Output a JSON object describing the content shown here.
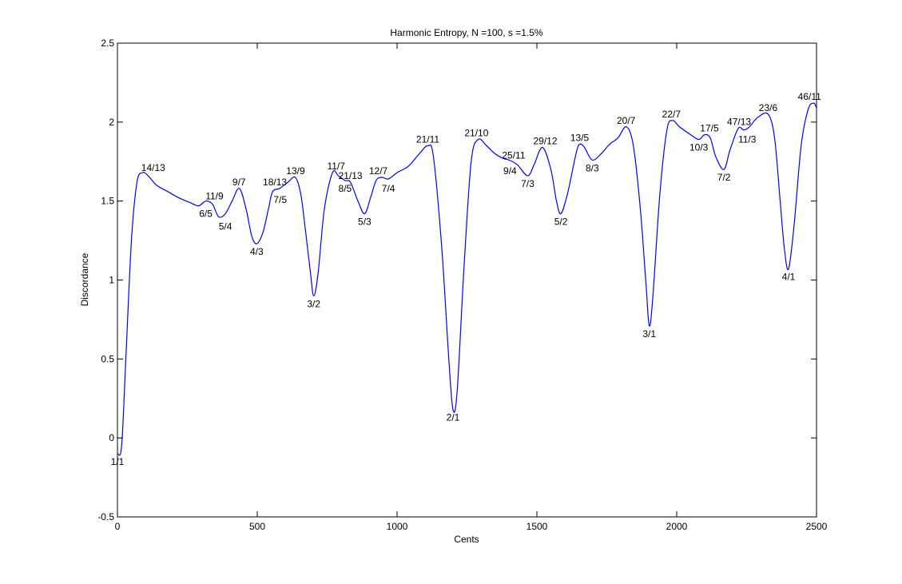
{
  "chart_data": {
    "type": "line",
    "title": "Harmonic Entropy, N =100, s =1.5%",
    "xlabel": "Cents",
    "ylabel": "Discordance",
    "xlim": [
      0,
      2500
    ],
    "ylim": [
      -0.5,
      2.5
    ],
    "x_ticks": [
      0,
      500,
      1000,
      1500,
      2000,
      2500
    ],
    "x_tick_labels": [
      "0",
      "500",
      "1000",
      "1500",
      "2000",
      "2500"
    ],
    "y_ticks": [
      -0.5,
      0,
      0.5,
      1,
      1.5,
      2,
      2.5
    ],
    "y_tick_labels": [
      "-0.5",
      "0",
      "0.5",
      "1",
      "1.5",
      "2",
      "2.5"
    ],
    "grid": false,
    "line_color": "#0000ff",
    "series": [
      {
        "x": [
          0,
          15,
          30,
          50,
          70,
          90,
          110,
          140,
          180,
          220,
          260,
          290,
          316,
          340,
          362,
          386,
          410,
          436,
          460,
          480,
          498,
          520,
          540,
          555,
          580,
          610,
          636,
          655,
          670,
          690,
          702,
          718,
          740,
          769,
          790,
          814,
          833,
          860,
          884,
          905,
          925,
          945,
          969,
          1000,
          1040,
          1080,
          1110,
          1130,
          1160,
          1185,
          1200,
          1215,
          1240,
          1265,
          1290,
          1320,
          1350,
          1380,
          1400,
          1430,
          1467,
          1490,
          1520,
          1550,
          1570,
          1586,
          1610,
          1640,
          1653,
          1670,
          1698,
          1730,
          1760,
          1790,
          1820,
          1845,
          1870,
          1890,
          1902,
          1915,
          1940,
          1965,
          1985,
          2010,
          2050,
          2079,
          2100,
          2120,
          2140,
          2169,
          2190,
          2220,
          2240,
          2260,
          2290,
          2327,
          2350,
          2370,
          2385,
          2400,
          2420,
          2445,
          2470,
          2490,
          2500
        ],
        "y": [
          -0.1,
          -0.05,
          0.5,
          1.25,
          1.62,
          1.68,
          1.66,
          1.6,
          1.56,
          1.52,
          1.49,
          1.47,
          1.5,
          1.48,
          1.4,
          1.42,
          1.5,
          1.58,
          1.45,
          1.28,
          1.23,
          1.3,
          1.45,
          1.56,
          1.58,
          1.62,
          1.65,
          1.55,
          1.35,
          1.05,
          0.9,
          1.05,
          1.45,
          1.68,
          1.66,
          1.63,
          1.62,
          1.5,
          1.42,
          1.52,
          1.63,
          1.65,
          1.64,
          1.68,
          1.72,
          1.8,
          1.85,
          1.78,
          1.2,
          0.5,
          0.18,
          0.3,
          1.1,
          1.75,
          1.89,
          1.85,
          1.8,
          1.77,
          1.76,
          1.73,
          1.66,
          1.73,
          1.84,
          1.7,
          1.5,
          1.42,
          1.55,
          1.8,
          1.86,
          1.84,
          1.76,
          1.8,
          1.86,
          1.9,
          1.97,
          1.85,
          1.45,
          0.98,
          0.71,
          0.9,
          1.55,
          1.95,
          2.01,
          1.97,
          1.92,
          1.89,
          1.92,
          1.9,
          1.78,
          1.7,
          1.82,
          1.96,
          1.95,
          1.97,
          2.03,
          2.05,
          1.9,
          1.5,
          1.2,
          1.07,
          1.35,
          1.85,
          2.08,
          2.12,
          2.09
        ]
      }
    ],
    "annotations": [
      {
        "text": "1/1",
        "x": 0,
        "y": -0.1,
        "pos": "below"
      },
      {
        "text": "14/13",
        "x": 128,
        "y": 1.67,
        "pos": "above"
      },
      {
        "text": "6/5",
        "x": 316,
        "y": 1.47,
        "pos": "below"
      },
      {
        "text": "11/9",
        "x": 347,
        "y": 1.49,
        "pos": "above"
      },
      {
        "text": "5/4",
        "x": 386,
        "y": 1.39,
        "pos": "below"
      },
      {
        "text": "9/7",
        "x": 435,
        "y": 1.58,
        "pos": "above"
      },
      {
        "text": "4/3",
        "x": 498,
        "y": 1.23,
        "pos": "below"
      },
      {
        "text": "18/13",
        "x": 563,
        "y": 1.58,
        "pos": "above"
      },
      {
        "text": "7/5",
        "x": 582,
        "y": 1.56,
        "pos": "below"
      },
      {
        "text": "13/9",
        "x": 637,
        "y": 1.65,
        "pos": "above"
      },
      {
        "text": "3/2",
        "x": 702,
        "y": 0.9,
        "pos": "below"
      },
      {
        "text": "11/7",
        "x": 782,
        "y": 1.68,
        "pos": "above"
      },
      {
        "text": "21/13",
        "x": 833,
        "y": 1.62,
        "pos": "above"
      },
      {
        "text": "8/5",
        "x": 814,
        "y": 1.63,
        "pos": "below"
      },
      {
        "text": "5/3",
        "x": 884,
        "y": 1.42,
        "pos": "below"
      },
      {
        "text": "12/7",
        "x": 933,
        "y": 1.65,
        "pos": "above"
      },
      {
        "text": "7/4",
        "x": 969,
        "y": 1.63,
        "pos": "below"
      },
      {
        "text": "21/11",
        "x": 1110,
        "y": 1.85,
        "pos": "above"
      },
      {
        "text": "2/1",
        "x": 1200,
        "y": 0.18,
        "pos": "below"
      },
      {
        "text": "21/10",
        "x": 1284,
        "y": 1.89,
        "pos": "above"
      },
      {
        "text": "25/11",
        "x": 1417,
        "y": 1.75,
        "pos": "above"
      },
      {
        "text": "9/4",
        "x": 1404,
        "y": 1.74,
        "pos": "below"
      },
      {
        "text": "7/3",
        "x": 1467,
        "y": 1.66,
        "pos": "below"
      },
      {
        "text": "29/12",
        "x": 1530,
        "y": 1.84,
        "pos": "above"
      },
      {
        "text": "5/2",
        "x": 1586,
        "y": 1.42,
        "pos": "below"
      },
      {
        "text": "13/5",
        "x": 1653,
        "y": 1.86,
        "pos": "above"
      },
      {
        "text": "8/3",
        "x": 1698,
        "y": 1.76,
        "pos": "below"
      },
      {
        "text": "20/7",
        "x": 1819,
        "y": 1.97,
        "pos": "above"
      },
      {
        "text": "3/1",
        "x": 1902,
        "y": 0.71,
        "pos": "below"
      },
      {
        "text": "22/7",
        "x": 1981,
        "y": 2.01,
        "pos": "above"
      },
      {
        "text": "17/5",
        "x": 2117,
        "y": 1.92,
        "pos": "above"
      },
      {
        "text": "10/3",
        "x": 2079,
        "y": 1.89,
        "pos": "below"
      },
      {
        "text": "7/2",
        "x": 2169,
        "y": 1.7,
        "pos": "below"
      },
      {
        "text": "47/13",
        "x": 2223,
        "y": 1.96,
        "pos": "above"
      },
      {
        "text": "11/3",
        "x": 2252,
        "y": 1.94,
        "pos": "below"
      },
      {
        "text": "23/6",
        "x": 2327,
        "y": 2.05,
        "pos": "above"
      },
      {
        "text": "4/1",
        "x": 2400,
        "y": 1.07,
        "pos": "below"
      },
      {
        "text": "46/11",
        "x": 2475,
        "y": 2.12,
        "pos": "above"
      }
    ]
  }
}
